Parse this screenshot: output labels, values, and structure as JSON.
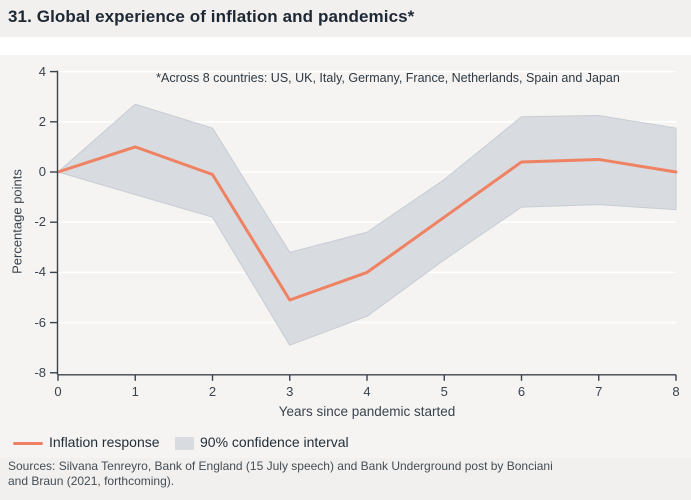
{
  "page": {
    "title": "31. Global experience of inflation and pandemics*",
    "annotation": "*Across 8 countries: US, UK, Italy, Germany, France, Netherlands, Spain and Japan",
    "sources_line1": "Sources: Silvana Tenreyro, Bank of England (15 July speech) and Bank Underground post by Bonciani",
    "sources_line2": "and Braun (2021, forthcoming)."
  },
  "legend": {
    "line_label": "Inflation response",
    "band_label": "90% confidence interval"
  },
  "colors": {
    "line": "#ef8262",
    "band": "#d8dbdf",
    "band_edge": "#c7cdd3",
    "grid": "#ffffff",
    "axis": "#3a434c",
    "page_bg": "#f1f0ee",
    "card_bg": "#f5f4f2"
  },
  "chart_data": {
    "type": "line",
    "title": "31. Global experience of inflation and pandemics*",
    "xlabel": "Years since pandemic started",
    "ylabel": "Percentage points",
    "x": [
      0,
      1,
      2,
      3,
      4,
      5,
      6,
      7,
      8
    ],
    "series": [
      {
        "name": "Inflation response",
        "type": "line",
        "values": [
          0,
          1.0,
          -0.1,
          -5.1,
          -4.0,
          -1.8,
          0.4,
          0.5,
          0.0
        ]
      },
      {
        "name": "90% confidence interval (upper)",
        "type": "band-upper",
        "values": [
          0,
          2.7,
          1.75,
          -3.2,
          -2.4,
          -0.3,
          2.2,
          2.25,
          1.75
        ]
      },
      {
        "name": "90% confidence interval (lower)",
        "type": "band-lower",
        "values": [
          0,
          -0.9,
          -1.8,
          -6.9,
          -5.75,
          -3.5,
          -1.4,
          -1.3,
          -1.5
        ]
      }
    ],
    "xlim": [
      0,
      8
    ],
    "ylim": [
      -8,
      4
    ],
    "x_ticks": [
      0,
      1,
      2,
      3,
      4,
      5,
      6,
      7,
      8
    ],
    "y_ticks": [
      4,
      2,
      0,
      -2,
      -4,
      -6,
      -8
    ],
    "grid": true,
    "legend_position": "bottom"
  }
}
